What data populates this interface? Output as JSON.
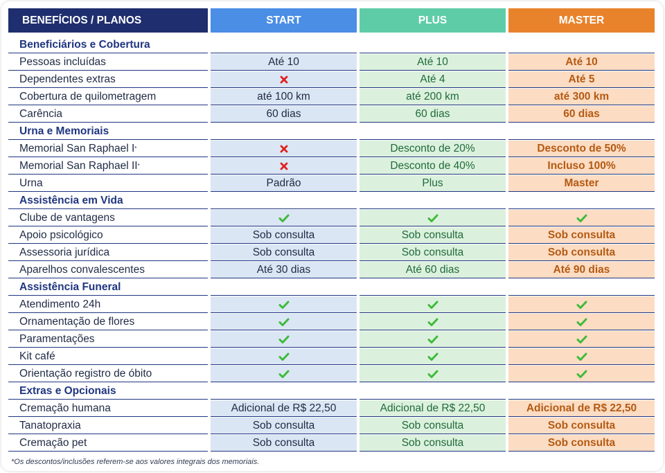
{
  "header": {
    "benefits": "BENEFÍCIOS / PLANOS",
    "plans": [
      "START",
      "PLUS",
      "MASTER"
    ]
  },
  "colors": {
    "navy": "#1e2e6e",
    "start": "#4a8ee6",
    "plus": "#5fcca8",
    "master": "#e8832c",
    "check": "#3dbb3a",
    "cross": "#e02020"
  },
  "rows": [
    {
      "type": "section",
      "label": "Beneficiários e Cobertura"
    },
    {
      "type": "data",
      "label": "Pessoas incluídas",
      "values": [
        "Até 10",
        "Até 10",
        "Até 10"
      ]
    },
    {
      "type": "data",
      "label": "Dependentes extras",
      "values": [
        "cross-icon",
        "Até 4",
        "Até 5"
      ]
    },
    {
      "type": "data",
      "label": "Cobertura de quilometragem",
      "values": [
        "até 100 km",
        "até 200 km",
        "até 300 km"
      ]
    },
    {
      "type": "data",
      "label": "Carência",
      "values": [
        "60 dias",
        "60 dias",
        "60 dias"
      ]
    },
    {
      "type": "section",
      "label": "Urna e Memoriais"
    },
    {
      "type": "data",
      "label": "Memorial San Raphael I",
      "sup": "*",
      "values": [
        "cross-icon",
        "Desconto de 20%",
        "Desconto de 50%"
      ]
    },
    {
      "type": "data",
      "label": "Memorial San Raphael II",
      "sup": "*",
      "values": [
        "cross-icon",
        "Desconto de 40%",
        "Incluso 100%"
      ]
    },
    {
      "type": "data",
      "label": "Urna",
      "values": [
        "Padrão",
        "Plus",
        "Master"
      ]
    },
    {
      "type": "section",
      "label": "Assistência em Vida"
    },
    {
      "type": "data",
      "label": "Clube de vantagens",
      "values": [
        "check-icon",
        "check-icon",
        "check-icon"
      ]
    },
    {
      "type": "data",
      "label": "Apoio psicológico",
      "values": [
        "Sob consulta",
        "Sob consulta",
        "Sob consulta"
      ]
    },
    {
      "type": "data",
      "label": "Assessoria jurídica",
      "values": [
        "Sob consulta",
        "Sob consulta",
        "Sob consulta"
      ]
    },
    {
      "type": "data",
      "label": "Aparelhos convalescentes",
      "values": [
        "Até 30 dias",
        "Até 60 dias",
        "Até 90 dias"
      ]
    },
    {
      "type": "section",
      "label": "Assistência Funeral"
    },
    {
      "type": "data",
      "label": "Atendimento 24h",
      "values": [
        "check-icon",
        "check-icon",
        "check-icon"
      ]
    },
    {
      "type": "data",
      "label": "Ornamentação de flores",
      "values": [
        "check-icon",
        "check-icon",
        "check-icon"
      ]
    },
    {
      "type": "data",
      "label": "Paramentações",
      "values": [
        "check-icon",
        "check-icon",
        "check-icon"
      ]
    },
    {
      "type": "data",
      "label": "Kit café",
      "values": [
        "check-icon",
        "check-icon",
        "check-icon"
      ]
    },
    {
      "type": "data",
      "label": "Orientação registro de óbito",
      "values": [
        "check-icon",
        "check-icon",
        "check-icon"
      ]
    },
    {
      "type": "section",
      "label": "Extras e Opcionais"
    },
    {
      "type": "data",
      "label": "Cremação humana",
      "values": [
        "Adicional de R$ 22,50",
        "Adicional de R$ 22,50",
        "Adicional de R$ 22,50"
      ]
    },
    {
      "type": "data",
      "label": "Tanatopraxia",
      "values": [
        "Sob consulta",
        "Sob consulta",
        "Sob consulta"
      ]
    },
    {
      "type": "data",
      "label": "Cremação pet",
      "values": [
        "Sob consulta",
        "Sob consulta",
        "Sob consulta"
      ]
    }
  ],
  "footnote": "*Os descontos/inclusões referem-se aos valores integrais dos memoriais."
}
